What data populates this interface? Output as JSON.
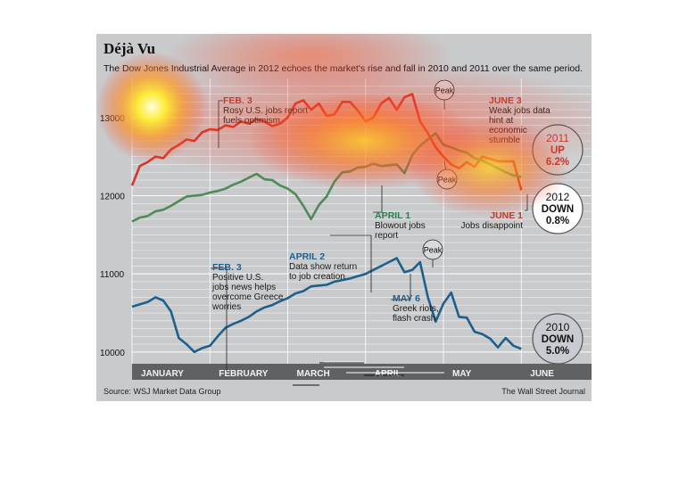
{
  "colors": {
    "background": "#c9cacc",
    "grid": "#ffffff",
    "month_band": "#5f6163",
    "line_2012": "#d6352b",
    "line_2011": "#4f8a5a",
    "line_2010": "#1f5f8b",
    "annotation_2012": "#c0392b",
    "annotation_2011": "#2e7d4f",
    "annotation_2010": "#1f5f8b"
  },
  "chart_data": {
    "type": "line",
    "title": "Déjà Vu",
    "subtitle": "The Dow Jones Industrial Average in 2012 echoes the market's rise and fall in 2010 and 2011 over the same period.",
    "source": "Source: WSJ Market Data Group",
    "credit": "The Wall Street Journal",
    "ylim": [
      9850,
      13500
    ],
    "y_ticks": [
      {
        "value": 10000,
        "label": "10000"
      },
      {
        "value": 11000,
        "label": "11000"
      },
      {
        "value": 12000,
        "label": "12000"
      },
      {
        "value": 13000,
        "label": "13000"
      }
    ],
    "xlim": [
      0,
      5.1
    ],
    "months": [
      "JANUARY",
      "FEBRUARY",
      "MARCH",
      "APRIL",
      "MAY",
      "JUNE"
    ],
    "series": [
      {
        "key": "2012",
        "x": [
          0.0,
          0.1,
          0.2,
          0.3,
          0.4,
          0.5,
          0.6,
          0.7,
          0.8,
          0.9,
          1.0,
          1.1,
          1.2,
          1.3,
          1.4,
          1.5,
          1.6,
          1.7,
          1.8,
          1.9,
          2.0,
          2.1,
          2.2,
          2.3,
          2.4,
          2.5,
          2.6,
          2.7,
          2.8,
          2.9,
          3.0,
          3.1,
          3.2,
          3.3,
          3.4,
          3.5,
          3.6,
          3.7,
          3.8,
          3.9,
          4.0,
          4.1,
          4.2,
          4.3,
          4.4,
          4.5,
          4.6,
          4.7,
          4.8,
          4.9,
          5.0
        ],
        "values": [
          12130,
          12380,
          12430,
          12500,
          12480,
          12590,
          12650,
          12720,
          12700,
          12810,
          12850,
          12840,
          12900,
          12880,
          12950,
          12920,
          12980,
          12950,
          12890,
          12920,
          13000,
          13180,
          13220,
          13100,
          13180,
          13020,
          13040,
          13200,
          13200,
          13090,
          12950,
          13000,
          13180,
          13250,
          13100,
          13260,
          13300,
          12950,
          12800,
          12620,
          12500,
          12400,
          12350,
          12430,
          12370,
          12500,
          12470,
          12440,
          12440,
          12440,
          12070
        ]
      },
      {
        "key": "2011",
        "x": [
          0.0,
          0.1,
          0.2,
          0.3,
          0.4,
          0.5,
          0.6,
          0.7,
          0.8,
          0.9,
          1.0,
          1.1,
          1.2,
          1.3,
          1.4,
          1.5,
          1.6,
          1.7,
          1.8,
          1.9,
          2.0,
          2.1,
          2.2,
          2.3,
          2.4,
          2.5,
          2.6,
          2.7,
          2.8,
          2.9,
          3.0,
          3.1,
          3.2,
          3.3,
          3.4,
          3.5,
          3.6,
          3.7,
          3.8,
          3.9,
          4.0,
          4.1,
          4.2,
          4.3,
          4.4,
          4.5,
          4.6,
          4.7,
          4.8,
          4.9,
          5.0
        ],
        "values": [
          11670,
          11720,
          11740,
          11800,
          11820,
          11870,
          11930,
          11990,
          12000,
          12010,
          12040,
          12060,
          12090,
          12140,
          12180,
          12230,
          12280,
          12210,
          12200,
          12130,
          12090,
          12020,
          11870,
          11700,
          11880,
          11990,
          12180,
          12300,
          12310,
          12360,
          12370,
          12410,
          12380,
          12390,
          12400,
          12290,
          12520,
          12640,
          12720,
          12800,
          12650,
          12620,
          12580,
          12550,
          12480,
          12450,
          12400,
          12350,
          12300,
          12260,
          12240
        ]
      },
      {
        "key": "2010",
        "x": [
          0.0,
          0.1,
          0.2,
          0.3,
          0.4,
          0.5,
          0.6,
          0.7,
          0.8,
          0.9,
          1.0,
          1.1,
          1.2,
          1.3,
          1.4,
          1.5,
          1.6,
          1.7,
          1.8,
          1.9,
          2.0,
          2.1,
          2.2,
          2.3,
          2.4,
          2.5,
          2.6,
          2.7,
          2.8,
          2.9,
          3.0,
          3.1,
          3.2,
          3.3,
          3.4,
          3.5,
          3.6,
          3.7,
          3.8,
          3.9,
          4.0,
          4.1,
          4.2,
          4.3,
          4.4,
          4.5,
          4.6,
          4.7,
          4.8,
          4.9,
          5.0
        ],
        "values": [
          10580,
          10610,
          10640,
          10700,
          10660,
          10520,
          10180,
          10100,
          10000,
          10050,
          10080,
          10200,
          10310,
          10360,
          10400,
          10450,
          10520,
          10570,
          10600,
          10650,
          10690,
          10750,
          10780,
          10840,
          10850,
          10860,
          10900,
          10920,
          10940,
          10970,
          11000,
          11050,
          11100,
          11150,
          11200,
          11020,
          11050,
          11150,
          10700,
          10390,
          10620,
          10760,
          10450,
          10440,
          10260,
          10230,
          10170,
          10060,
          10180,
          10080,
          10040
        ]
      }
    ],
    "badges": [
      {
        "year": "2011",
        "direction": "UP",
        "change": "6.2%"
      },
      {
        "year": "2012",
        "direction": "DOWN",
        "change": "0.8%"
      },
      {
        "year": "2010",
        "direction": "DOWN",
        "change": "5.0%"
      }
    ],
    "peak_label": "Peak",
    "annotations": [
      {
        "series": "2012",
        "head": "FEB. 3",
        "lines": [
          "Rosy U.S. jobs report",
          "fuels optimism"
        ]
      },
      {
        "series": "2012",
        "head": "JUNE 3",
        "lines": [
          "Weak jobs data",
          "hint at",
          "economic",
          "stumble"
        ]
      },
      {
        "series": "2012",
        "head": "JUNE 1",
        "lines": [
          "Jobs disappoint"
        ]
      },
      {
        "series": "2011",
        "head": "APRIL 1",
        "lines": [
          "Blowout jobs",
          "report"
        ]
      },
      {
        "series": "2010",
        "head": "FEB. 3",
        "lines": [
          "Positive U.S.",
          "jobs news helps",
          "overcome Greece",
          "worries"
        ]
      },
      {
        "series": "2010",
        "head": "APRIL 2",
        "lines": [
          "Data show return",
          "to job creation"
        ]
      },
      {
        "series": "2010",
        "head": "MAY 6",
        "lines": [
          "Greek riots,",
          "flash crash"
        ]
      }
    ]
  }
}
